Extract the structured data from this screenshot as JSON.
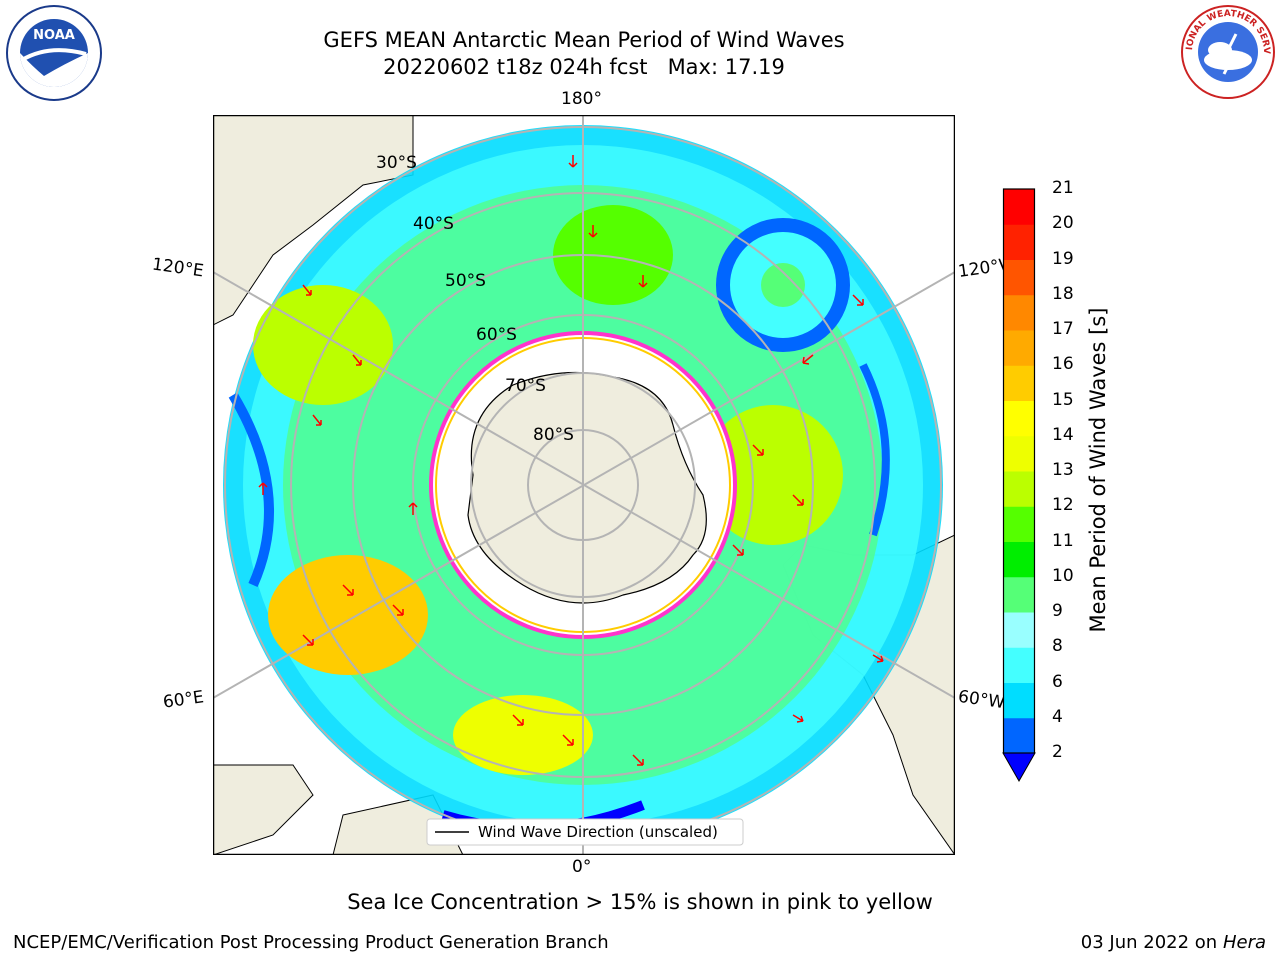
{
  "header": {
    "title": "GEFS MEAN Antarctic Mean Period of Wind Waves",
    "subtitle": "20220602 t18z 024h fcst   Max: 17.19"
  },
  "logos": {
    "noaa_text": "NOAA",
    "nws_text": "NATIONAL WEATHER SERVICE"
  },
  "map": {
    "projection": "south-polar-stereographic",
    "lon_labels": {
      "top": "180°",
      "bottom": "0°",
      "left_upper": "120°E",
      "left_lower": "60°E",
      "right_upper": "120°W",
      "right_lower": "60°W"
    },
    "lat_labels": [
      "30°S",
      "40°S",
      "50°S",
      "60°S",
      "70°S",
      "80°S"
    ],
    "legend": "Wind Wave Direction (unscaled)",
    "colors": {
      "land": "#efedde",
      "ocean": "#ffffff",
      "arrow": "#ff0000",
      "grid": "#b4b4b4"
    }
  },
  "colorbar": {
    "title": "Mean Period of Wind Waves [s]",
    "ticks": [
      "2",
      "4",
      "6",
      "8",
      "9",
      "10",
      "11",
      "12",
      "13",
      "14",
      "15",
      "16",
      "17",
      "18",
      "19",
      "20",
      "21"
    ],
    "colors": [
      "#0000ff",
      "#0066ff",
      "#00ddff",
      "#44ffff",
      "#99ffff",
      "#55ff77",
      "#00ee00",
      "#55ff00",
      "#bbff00",
      "#eeff00",
      "#ffff00",
      "#ffcc00",
      "#ffaa00",
      "#ff8800",
      "#ff5500",
      "#ff2200",
      "#ff0000"
    ],
    "under_color": "#0000ff"
  },
  "caption": "Sea Ice Concentration > 15% is shown in pink to yellow",
  "footer": {
    "left": "NCEP/EMC/Verification Post Processing Product Generation Branch",
    "right_date": "03 Jun 2022 on",
    "right_host": "Hera"
  }
}
